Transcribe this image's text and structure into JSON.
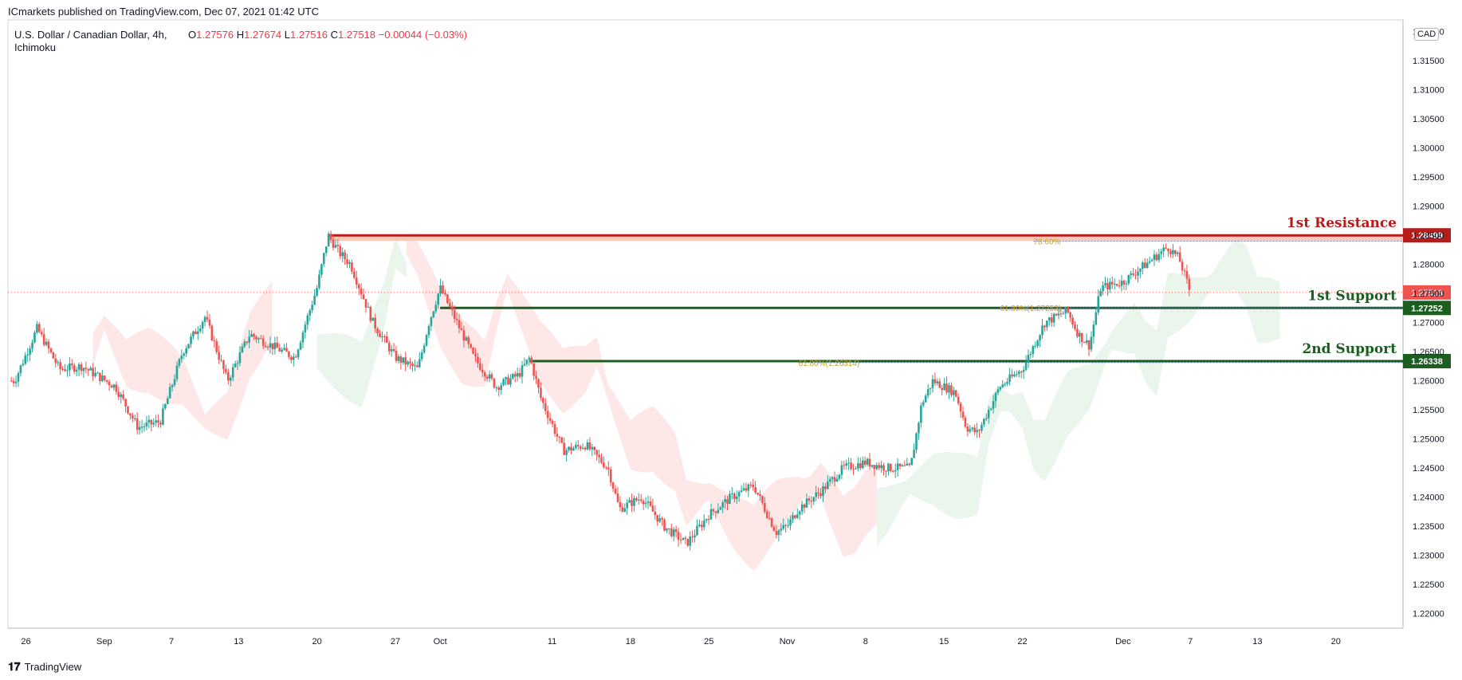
{
  "header": {
    "published": "ICmarkets published on TradingView.com, Dec 07, 2021 01:42 UTC"
  },
  "legend": {
    "symbol": "U.S. Dollar / Canadian Dollar, 4h,",
    "indicator": "Ichimoku",
    "o_label": "O",
    "o": "1.27576",
    "h_label": "H",
    "h": "1.27674",
    "l_label": "L",
    "l": "1.27516",
    "c_label": "C",
    "c": "1.27518",
    "change": "−0.00044 (−0.03%)"
  },
  "currency_badge": "CAD",
  "footer": {
    "brand_icon": "tradingview-logo-icon",
    "brand": "TradingView"
  },
  "colors": {
    "up": "#26a69a",
    "down": "#ef5350",
    "resistance": "#b71c1c",
    "support": "#1b5e20",
    "cloud_bull": "#e8f5e9",
    "cloud_bear": "#fde4e4"
  },
  "chart_data": {
    "type": "candlestick",
    "title": "U.S. Dollar / Canadian Dollar, 4h",
    "ylim": [
      1.2175,
      1.322
    ],
    "y_ticks": [
      "1.32000",
      "1.31500",
      "1.31000",
      "1.30500",
      "1.30000",
      "1.29500",
      "1.29000",
      "1.28500",
      "1.28000",
      "1.27500",
      "1.27000",
      "1.26500",
      "1.26000",
      "1.25500",
      "1.25000",
      "1.24500",
      "1.24000",
      "1.23500",
      "1.23000",
      "1.22500",
      "1.22000"
    ],
    "x_ticks": [
      {
        "label": "26",
        "day": -7
      },
      {
        "label": "Sep",
        "day": 0
      },
      {
        "label": "7",
        "day": 6
      },
      {
        "label": "13",
        "day": 12
      },
      {
        "label": "20",
        "day": 19
      },
      {
        "label": "27",
        "day": 26
      },
      {
        "label": "Oct",
        "day": 30
      },
      {
        "label": "11",
        "day": 40
      },
      {
        "label": "18",
        "day": 47
      },
      {
        "label": "25",
        "day": 54
      },
      {
        "label": "Nov",
        "day": 61
      },
      {
        "label": "8",
        "day": 68
      },
      {
        "label": "15",
        "day": 75
      },
      {
        "label": "22",
        "day": 82
      },
      {
        "label": "Dec",
        "day": 91
      },
      {
        "label": "7",
        "day": 97
      },
      {
        "label": "13",
        "day": 103
      },
      {
        "label": "20",
        "day": 110
      }
    ],
    "price_path": [
      [
        -8,
        1.26
      ],
      [
        -6,
        1.269
      ],
      [
        -4,
        1.262
      ],
      [
        -2,
        1.2625
      ],
      [
        1,
        1.259
      ],
      [
        3,
        1.252
      ],
      [
        5,
        1.253
      ],
      [
        7,
        1.265
      ],
      [
        9,
        1.271
      ],
      [
        11,
        1.26
      ],
      [
        13,
        1.268
      ],
      [
        15,
        1.266
      ],
      [
        17,
        1.264
      ],
      [
        19,
        1.276
      ],
      [
        20,
        1.285
      ],
      [
        21,
        1.282
      ],
      [
        22,
        1.28
      ],
      [
        24,
        1.27
      ],
      [
        26,
        1.264
      ],
      [
        28,
        1.262
      ],
      [
        29,
        1.27
      ],
      [
        30,
        1.276
      ],
      [
        31,
        1.272
      ],
      [
        33,
        1.264
      ],
      [
        35,
        1.259
      ],
      [
        37,
        1.261
      ],
      [
        38,
        1.264
      ],
      [
        39,
        1.257
      ],
      [
        41,
        1.248
      ],
      [
        43,
        1.249
      ],
      [
        45,
        1.245
      ],
      [
        46,
        1.238
      ],
      [
        48,
        1.24
      ],
      [
        50,
        1.235
      ],
      [
        52,
        1.232
      ],
      [
        54,
        1.237
      ],
      [
        56,
        1.24
      ],
      [
        58,
        1.242
      ],
      [
        60,
        1.234
      ],
      [
        61,
        1.235
      ],
      [
        62,
        1.238
      ],
      [
        64,
        1.241
      ],
      [
        66,
        1.245
      ],
      [
        68,
        1.246
      ],
      [
        70,
        1.245
      ],
      [
        72,
        1.245
      ],
      [
        73,
        1.256
      ],
      [
        74,
        1.26
      ],
      [
        76,
        1.258
      ],
      [
        77,
        1.252
      ],
      [
        78,
        1.251
      ],
      [
        80,
        1.259
      ],
      [
        82,
        1.262
      ],
      [
        84,
        1.27
      ],
      [
        86,
        1.272
      ],
      [
        87,
        1.268
      ],
      [
        88,
        1.266
      ],
      [
        89,
        1.276
      ],
      [
        91,
        1.277
      ],
      [
        93,
        1.28
      ],
      [
        95,
        1.283
      ],
      [
        96,
        1.281
      ],
      [
        97,
        1.2752
      ]
    ],
    "series": [
      {
        "name": "Ichimoku cloud bullish",
        "spans": [
          [
            19,
            27
          ],
          [
            69,
            105
          ]
        ]
      },
      {
        "name": "Ichimoku cloud bearish",
        "spans": [
          [
            -1,
            15
          ],
          [
            27,
            69
          ]
        ]
      }
    ],
    "levels": [
      {
        "name": "1st Resistance",
        "price": 1.28499,
        "label": "1.28499",
        "from_day": 20
      },
      {
        "name": "1st Support",
        "price": 1.27252,
        "label": "1.27252",
        "from_day": 30
      },
      {
        "name": "2nd Support",
        "price": 1.26338,
        "label": "1.26338",
        "from_day": 38
      }
    ],
    "fib_labels": [
      {
        "text": "78.60%",
        "price": 1.284,
        "day": 83
      },
      {
        "text": "61.80%(1.27253)",
        "price": 1.27253,
        "day": 80
      },
      {
        "text": "61.80%(1.26314)",
        "price": 1.26314,
        "day": 62
      }
    ],
    "last_price": {
      "value": 1.27518,
      "label": "1.27518"
    }
  }
}
